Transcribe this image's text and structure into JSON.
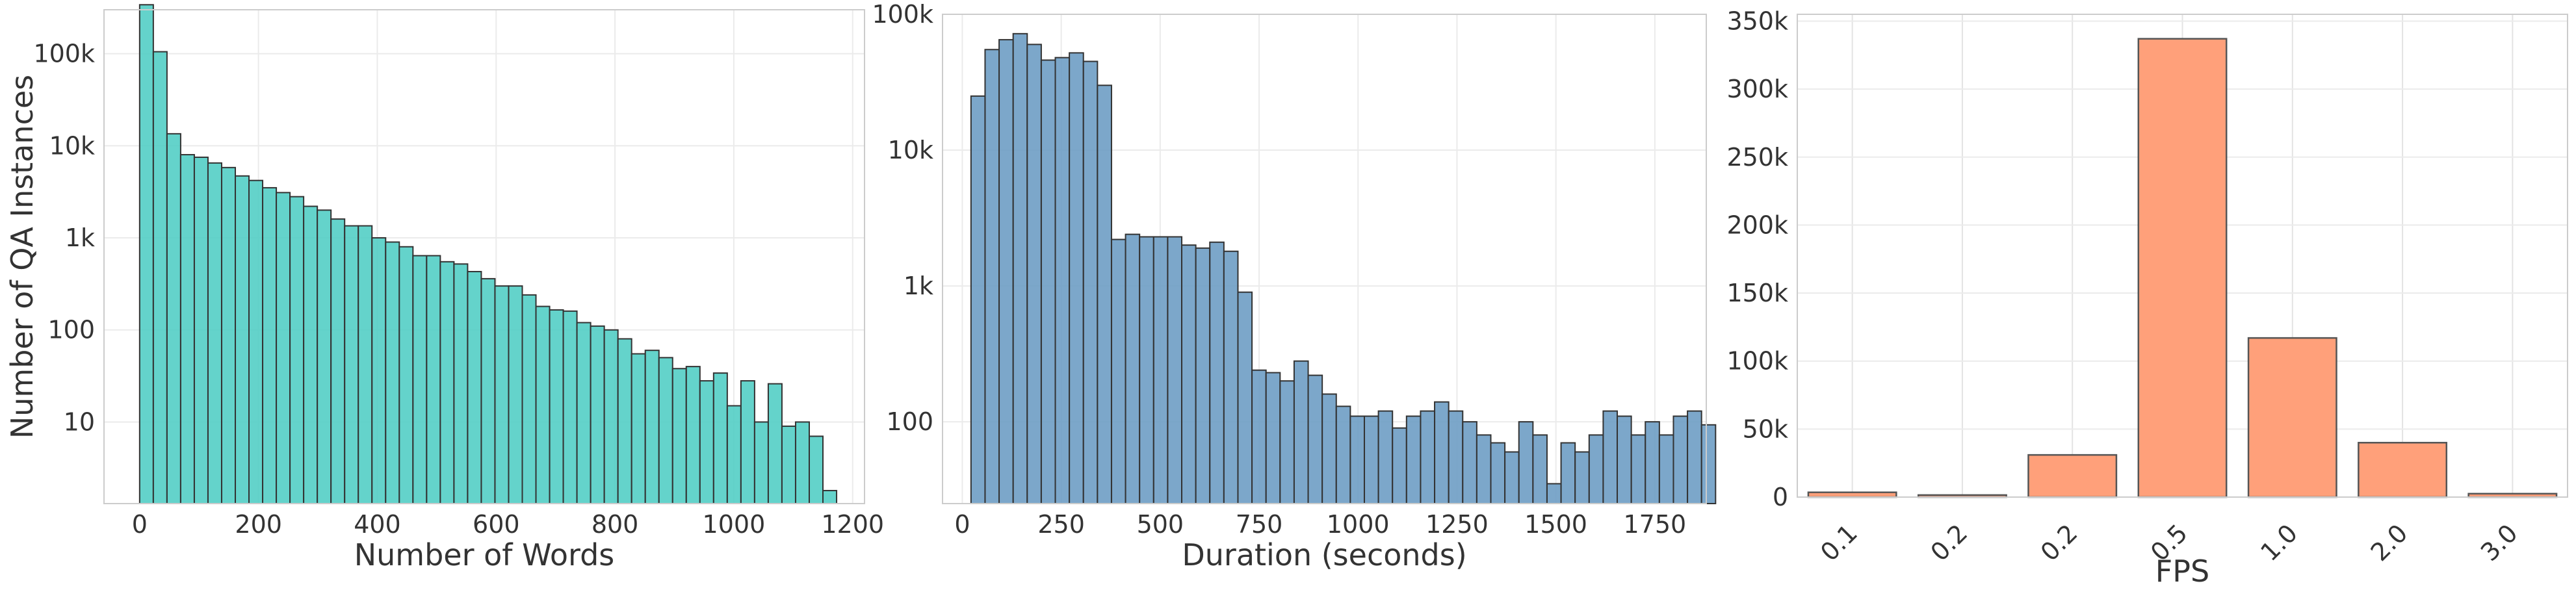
{
  "chart_data": [
    {
      "type": "bar",
      "histogram": true,
      "xlabel": "Number of Words",
      "ylabel": "Number of QA Instances",
      "y_scale": "log",
      "ylim": [
        1.3,
        300000
      ],
      "xlim": [
        -60,
        1220
      ],
      "color": "#4ecdc4",
      "grid": true,
      "bin_start": 0,
      "bin_width": 23,
      "values": [
        340000,
        105000,
        13500,
        8000,
        7500,
        6500,
        5800,
        4700,
        4200,
        3500,
        3100,
        2800,
        2200,
        2000,
        1600,
        1350,
        1350,
        1000,
        900,
        800,
        640,
        640,
        550,
        520,
        430,
        360,
        300,
        300,
        240,
        180,
        165,
        160,
        120,
        110,
        100,
        80,
        55,
        60,
        50,
        38,
        40,
        28,
        34,
        15,
        28,
        10,
        26,
        9,
        10,
        7,
        1.8
      ],
      "x_ticks": [
        0,
        200,
        400,
        600,
        800,
        1000,
        1200
      ],
      "x_tick_labels": [
        "0",
        "200",
        "400",
        "600",
        "800",
        "1000",
        "1200"
      ],
      "y_ticks": [
        10,
        100,
        1000,
        10000,
        100000
      ],
      "y_tick_labels": [
        "10",
        "100",
        "1k",
        "10k",
        "100k"
      ]
    },
    {
      "type": "bar",
      "histogram": true,
      "xlabel": "Duration (seconds)",
      "ylabel": "",
      "y_scale": "log",
      "ylim": [
        25,
        100000
      ],
      "xlim": [
        -50,
        1880
      ],
      "color": "#6a9bc3",
      "grid": true,
      "bin_start": 22,
      "bin_width": 35.5,
      "values": [
        25000,
        55000,
        65000,
        72000,
        60000,
        46000,
        48000,
        52000,
        45000,
        30000,
        2200,
        2400,
        2300,
        2300,
        2300,
        2000,
        1900,
        2100,
        1800,
        900,
        240,
        230,
        200,
        280,
        220,
        160,
        130,
        110,
        110,
        120,
        90,
        110,
        120,
        140,
        120,
        100,
        80,
        70,
        60,
        100,
        80,
        35,
        70,
        60,
        80,
        120,
        110,
        80,
        100,
        80,
        110,
        120,
        95
      ],
      "x_ticks": [
        0,
        250,
        500,
        750,
        1000,
        1250,
        1500,
        1750
      ],
      "x_tick_labels": [
        "0",
        "250",
        "500",
        "750",
        "1000",
        "1250",
        "1500",
        "1750"
      ],
      "y_ticks": [
        100,
        1000,
        10000,
        100000
      ],
      "y_tick_labels": [
        "100",
        "1k",
        "10k",
        "100k"
      ]
    },
    {
      "type": "bar",
      "xlabel": "FPS",
      "ylabel": "",
      "color": "#ffa07a",
      "grid": true,
      "categories": [
        "0.1",
        "0.2",
        "0.2",
        "0.5",
        "1.0",
        "2.0",
        "3.0"
      ],
      "values": [
        3500,
        1500,
        31000,
        337000,
        117000,
        40000,
        2500
      ],
      "ylim": [
        0,
        355000
      ],
      "y_ticks": [
        0,
        50000,
        100000,
        150000,
        200000,
        250000,
        300000,
        350000
      ],
      "y_tick_labels": [
        "0",
        "50k",
        "100k",
        "150k",
        "200k",
        "250k",
        "300k",
        "350k"
      ]
    }
  ]
}
